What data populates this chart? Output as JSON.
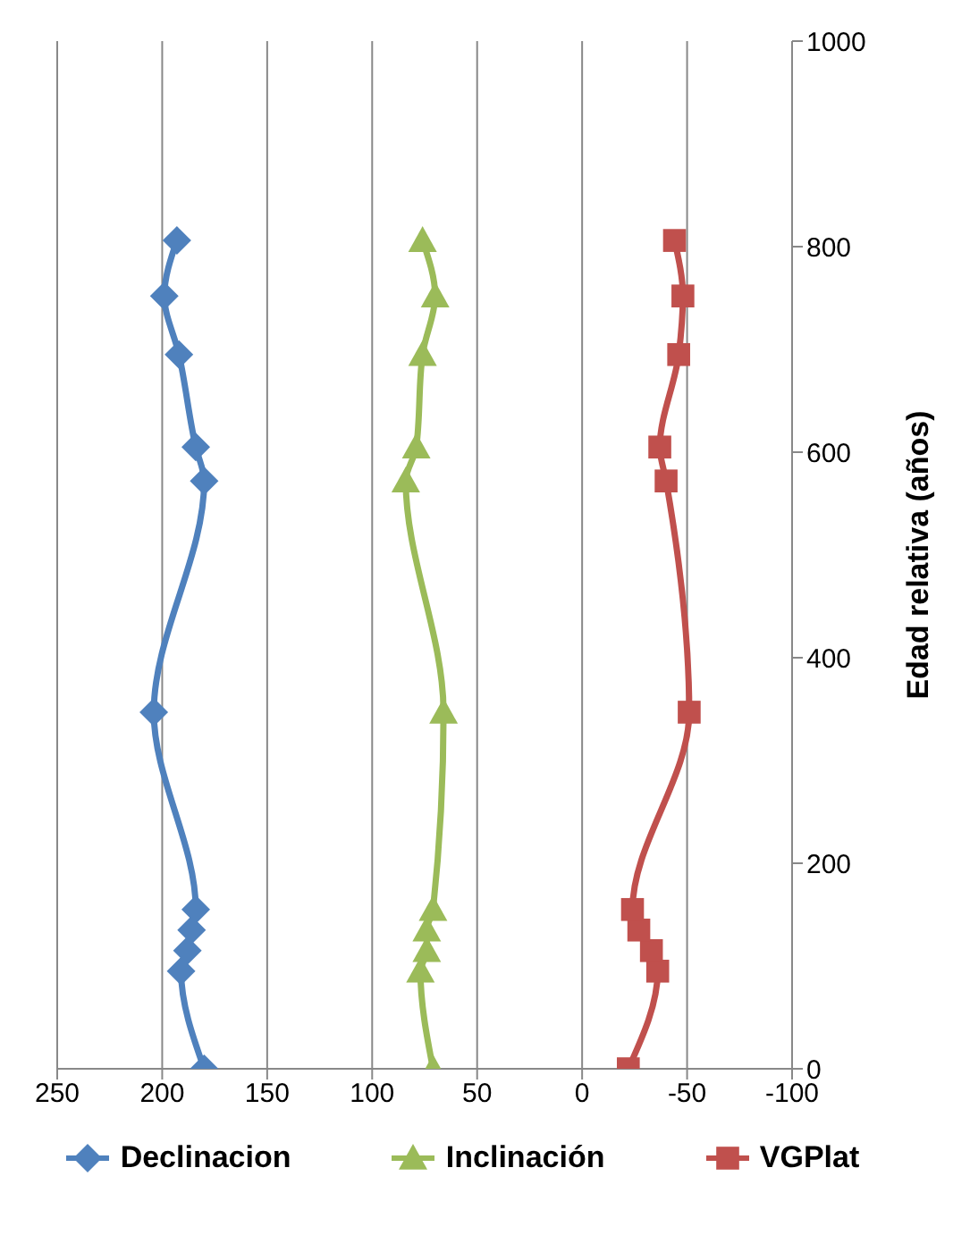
{
  "chart_data": {
    "type": "line",
    "ylabel": "Edad relativa  (años)",
    "xlim": [
      250,
      -100
    ],
    "xticks": [
      250,
      200,
      150,
      100,
      50,
      0,
      -50,
      -100
    ],
    "ylim": [
      0,
      1000
    ],
    "yticks": [
      0,
      200,
      400,
      600,
      800,
      1000
    ],
    "grid": "x",
    "legend": "bottom",
    "series": [
      {
        "name": "Declinacion",
        "color": "#4f81bd",
        "marker": "diamond",
        "x": [
          180,
          191,
          188,
          186,
          184,
          204,
          180,
          184,
          192,
          199,
          193
        ],
        "values": [
          0,
          95,
          115,
          135,
          155,
          347,
          572,
          605,
          695,
          752,
          806
        ]
      },
      {
        "name": "Inclinación",
        "color": "#9bbb59",
        "marker": "triangle",
        "x": [
          71,
          77,
          74,
          74,
          71,
          66,
          84,
          79,
          76,
          70,
          76
        ],
        "values": [
          0,
          95,
          115,
          135,
          155,
          347,
          572,
          605,
          695,
          752,
          806
        ]
      },
      {
        "name": "VGPlat",
        "color": "#c0504d",
        "marker": "square",
        "x": [
          -22,
          -36,
          -33,
          -27,
          -24,
          -51,
          -40,
          -37,
          -46,
          -48,
          -44
        ],
        "values": [
          0,
          95,
          115,
          135,
          155,
          347,
          572,
          605,
          695,
          752,
          806
        ]
      }
    ]
  }
}
